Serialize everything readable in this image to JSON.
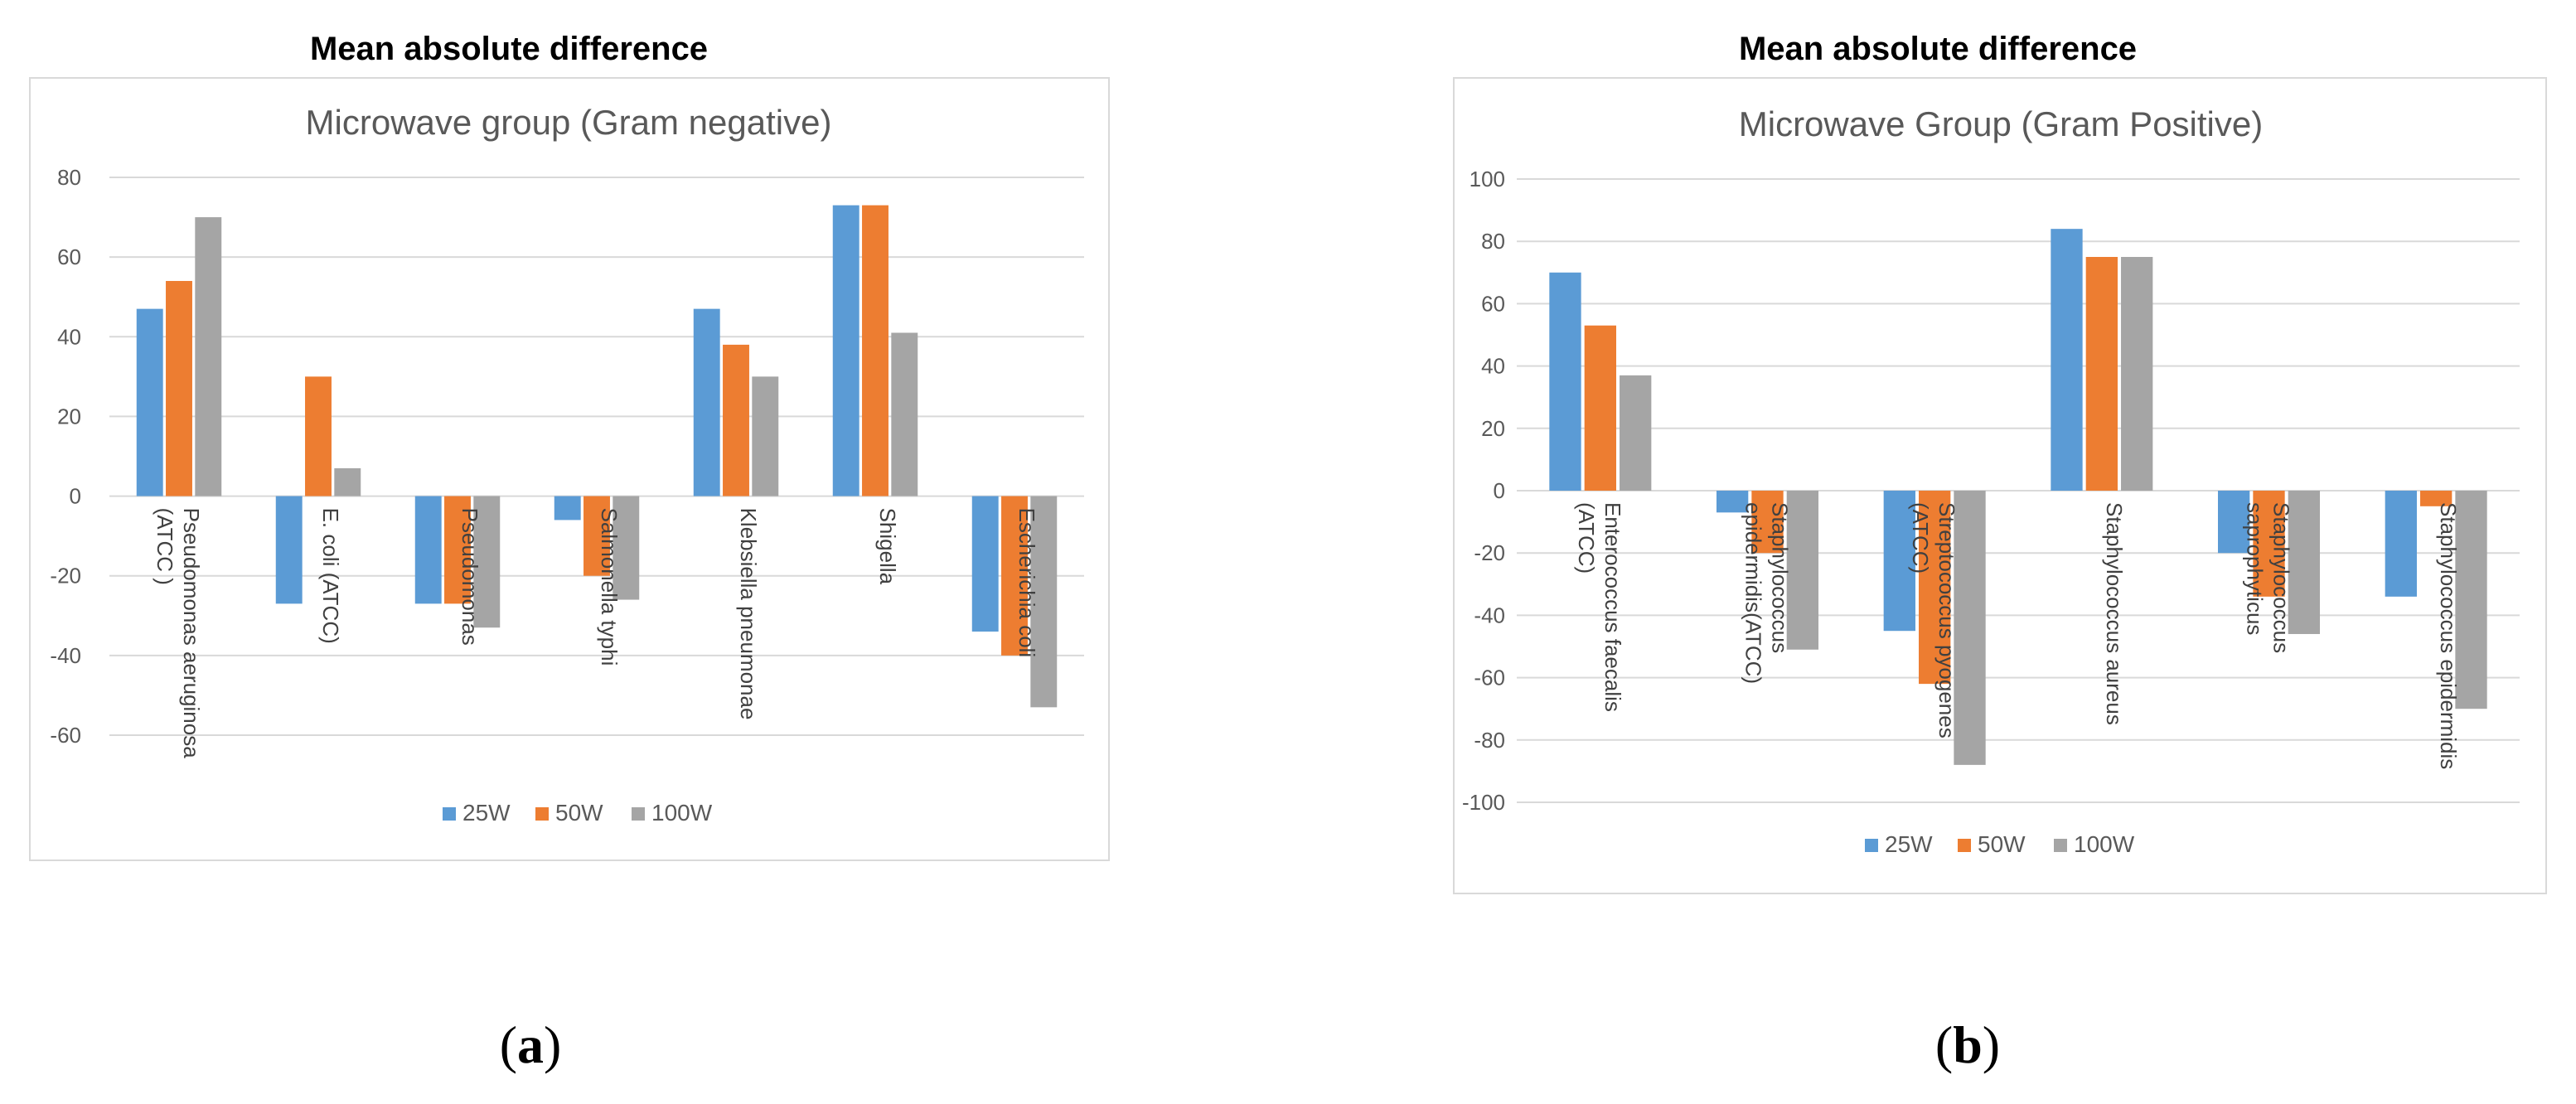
{
  "colors": {
    "s25": "#5b9bd5",
    "s50": "#ed7d31",
    "s100": "#a5a5a5"
  },
  "chart_data": [
    {
      "type": "bar",
      "heading": "Mean absolute difference",
      "title": "Microwave group (Gram negative)",
      "panel_label": {
        "open": "(",
        "letter": "a",
        "close": ")"
      },
      "categories": [
        [
          "Pseudomonas aeruginosa",
          "(ATCC )"
        ],
        [
          "E. coli (ATCC)"
        ],
        [
          "Pseudomonas"
        ],
        [
          "Salmonella typhi"
        ],
        [
          "Klebsiella pneumonae"
        ],
        [
          "Shigella"
        ],
        [
          "Escherichia coli"
        ]
      ],
      "series": [
        {
          "name": "25W",
          "values": [
            47,
            -27,
            -27,
            -6,
            47,
            73,
            -34
          ]
        },
        {
          "name": "50W",
          "values": [
            54,
            30,
            -27,
            -20,
            38,
            73,
            -40
          ]
        },
        {
          "name": "100W",
          "values": [
            70,
            7,
            -33,
            -26,
            30,
            41,
            -53
          ]
        }
      ],
      "ylim": [
        -60,
        80
      ],
      "yticks": [
        "80",
        "60",
        "40",
        "20",
        "0",
        "-20",
        "-40",
        "-60"
      ],
      "ytick_values": [
        80,
        60,
        40,
        20,
        0,
        -20,
        -40,
        -60
      ],
      "legend_position": "bottom"
    },
    {
      "type": "bar",
      "heading": "Mean absolute difference",
      "title": "Microwave Group (Gram Positive)",
      "panel_label": {
        "open": "(",
        "letter": "b",
        "close": ")"
      },
      "categories": [
        [
          "Enterococcus faecalis",
          "(ATCC)"
        ],
        [
          "Staphylococcus",
          "epidermidis(ATCC)"
        ],
        [
          "Streptococcus pyogenes",
          "(ATCC)"
        ],
        [
          "Staphylococcus aureus"
        ],
        [
          "Staphylococcus",
          "saprophyticus"
        ],
        [
          "Staphylococcus epidermidis"
        ]
      ],
      "series": [
        {
          "name": "25W",
          "values": [
            70,
            -7,
            -45,
            84,
            -20,
            -34
          ]
        },
        {
          "name": "50W",
          "values": [
            53,
            -20,
            -62,
            75,
            -34,
            -5
          ]
        },
        {
          "name": "100W",
          "values": [
            37,
            -51,
            -88,
            75,
            -46,
            -70
          ]
        }
      ],
      "ylim": [
        -100,
        100
      ],
      "yticks": [
        "100",
        "80",
        "60",
        "40",
        "20",
        "0",
        "-20",
        "-40",
        "-60",
        "-80",
        "-100"
      ],
      "ytick_values": [
        100,
        80,
        60,
        40,
        20,
        0,
        -20,
        -40,
        -60,
        -80,
        -100
      ],
      "legend_position": "bottom"
    }
  ]
}
